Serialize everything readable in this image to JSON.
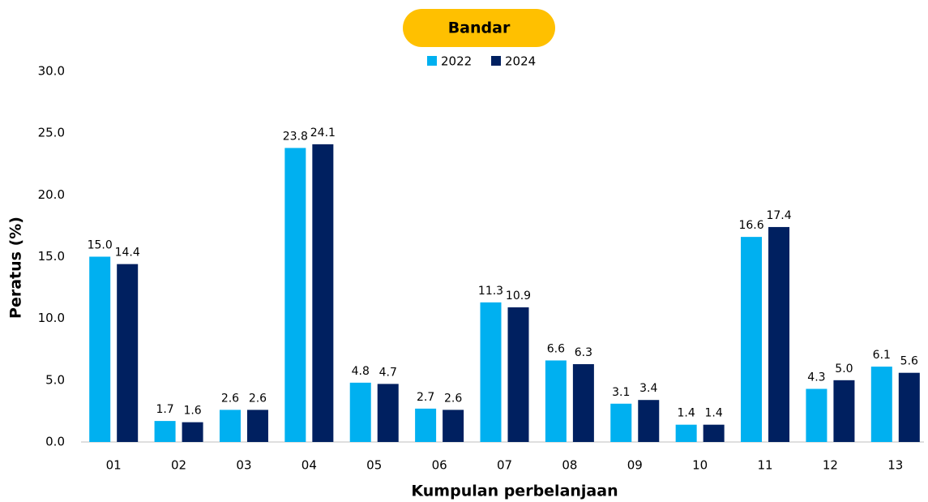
{
  "chart_data": {
    "type": "bar",
    "title": "Bandar",
    "xlabel": "Kumpulan perbelanjaan",
    "ylabel": "Peratus (%)",
    "categories": [
      "01",
      "02",
      "03",
      "04",
      "05",
      "06",
      "07",
      "08",
      "09",
      "10",
      "11",
      "12",
      "13"
    ],
    "series": [
      {
        "name": "2022",
        "color": "#00b0f0",
        "values": [
          15.0,
          1.7,
          2.6,
          23.8,
          4.8,
          2.7,
          11.3,
          6.6,
          3.1,
          1.4,
          16.6,
          4.3,
          6.1
        ],
        "value_labels": [
          "15.0",
          "1.7",
          "2.6",
          "23.8",
          "4.8",
          "2.7",
          "11.3",
          "6.6",
          "3.1",
          "1.4",
          "16.6",
          "4.3",
          "6.1"
        ]
      },
      {
        "name": "2024",
        "color": "#002060",
        "values": [
          14.4,
          1.6,
          2.6,
          24.1,
          4.7,
          2.6,
          10.9,
          6.3,
          3.4,
          1.4,
          17.4,
          5.0,
          5.6
        ],
        "value_labels": [
          "14.4",
          "1.6",
          "2.6",
          "24.1",
          "4.7",
          "2.6",
          "10.9",
          "6.3",
          "3.4",
          "1.4",
          "17.4",
          "5.0",
          "5.6"
        ]
      }
    ],
    "ylim": [
      0,
      30
    ],
    "yticks": [
      {
        "value": 0,
        "label": "0.0"
      },
      {
        "value": 5,
        "label": "5.0"
      },
      {
        "value": 10,
        "label": "10.0"
      },
      {
        "value": 15,
        "label": "15.0"
      },
      {
        "value": 20,
        "label": "20.0"
      },
      {
        "value": 25,
        "label": "25.0"
      },
      {
        "value": 30,
        "label": "30.0"
      }
    ],
    "grid": false,
    "legend": "top"
  }
}
